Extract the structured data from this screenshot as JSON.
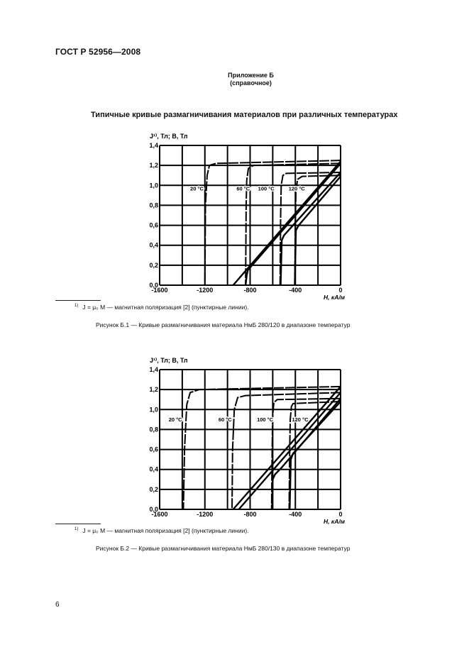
{
  "header": {
    "standard_code": "ГОСТ Р 52956—2008",
    "annex_title": "Приложение Б",
    "annex_subtitle": "(справочное)",
    "section_title": "Типичные кривые размагничивания материалов при различных температурах"
  },
  "figures": [
    {
      "footnote_marker": "1)",
      "footnote_text": "J = μ₀ M — магнитная поляризация [2] (пунктирные линии).",
      "caption": "Рисунок Б.1 — Кривые размагничивания материала НмБ 280/120 в диапазоне температур"
    },
    {
      "footnote_marker": "1)",
      "footnote_text": "J = μ₀ M — магнитная поляризация [2] (пунктирные линии).",
      "caption": "Рисунок Б.2 — Кривые размагничивания материала НмБ 280/130 в диапазоне температур"
    }
  ],
  "footer": {
    "page_number": "6"
  },
  "chart_data": [
    {
      "type": "line",
      "title": "Рисунок Б.1 — Кривые размагничивания материала НмБ 280/120 в диапазоне температур",
      "xlabel": "H, кА/м",
      "ylabel": "J¹⁾, Тл; B, Тл",
      "xlim": [
        -1600,
        0
      ],
      "ylim": [
        0.0,
        1.4
      ],
      "grid": true,
      "x_grid_step": 200,
      "y_grid_step": 0.2,
      "x_ticks": [
        "-1600",
        "-1200",
        "-800",
        "-400",
        "0"
      ],
      "y_ticks": [
        "0,0",
        "0,2",
        "0,4",
        "0,6",
        "0,8",
        "1,0",
        "1,2",
        "1,4"
      ],
      "annotations": [
        {
          "text": "20 °C",
          "x": -1330,
          "y": 0.95
        },
        {
          "text": "60 °C",
          "x": -920,
          "y": 0.95
        },
        {
          "text": "100 °C",
          "x": -730,
          "y": 0.95
        },
        {
          "text": "120 °C",
          "x": -460,
          "y": 0.95
        }
      ],
      "series": [
        {
          "name": "J 20 °C",
          "style": "dashed",
          "x": [
            0,
            -1100,
            -1160,
            -1180,
            -1195,
            -1200
          ],
          "y": [
            1.25,
            1.22,
            1.2,
            1.1,
            0.8,
            0.0
          ]
        },
        {
          "name": "J 60 °C",
          "style": "dashed",
          "x": [
            0,
            -770,
            -815,
            -830,
            -835,
            -840
          ],
          "y": [
            1.22,
            1.2,
            1.17,
            1.05,
            0.8,
            0.0
          ]
        },
        {
          "name": "J 100 °C",
          "style": "dashed",
          "x": [
            0,
            -480,
            -510,
            -525,
            -530,
            -535
          ],
          "y": [
            1.13,
            1.12,
            1.1,
            1.0,
            0.7,
            0.0
          ]
        },
        {
          "name": "J 120 °C",
          "style": "dashed",
          "x": [
            0,
            -340,
            -380,
            -395,
            -400,
            -405
          ],
          "y": [
            1.1,
            1.09,
            1.06,
            0.95,
            0.6,
            0.0
          ]
        },
        {
          "name": "B 20 °C",
          "style": "solid",
          "x": [
            0,
            -950
          ],
          "y": [
            1.24,
            0.0
          ]
        },
        {
          "name": "B 60 °C",
          "style": "solid",
          "x": [
            0,
            -820,
            -830,
            -840
          ],
          "y": [
            1.22,
            0.15,
            0.1,
            0.0
          ]
        },
        {
          "name": "B 100 °C",
          "style": "solid",
          "x": [
            0,
            -500,
            -520,
            -530
          ],
          "y": [
            1.13,
            0.5,
            0.45,
            0.0
          ]
        },
        {
          "name": "B 120 °C",
          "style": "solid",
          "x": [
            0,
            -370,
            -395,
            -405
          ],
          "y": [
            1.09,
            0.6,
            0.55,
            0.0
          ]
        }
      ]
    },
    {
      "type": "line",
      "title": "Рисунок Б.2 — Кривые размагничивания материала НмБ 280/130 в диапазоне температур",
      "xlabel": "H, кА/м",
      "ylabel": "J¹⁾, Тл; B, Тл",
      "xlim": [
        -1600,
        0
      ],
      "ylim": [
        0.0,
        1.4
      ],
      "grid": true,
      "x_grid_step": 200,
      "y_grid_step": 0.2,
      "x_ticks": [
        "-1600",
        "-1200",
        "-800",
        "-400",
        "0"
      ],
      "y_ticks": [
        "0,0",
        "0,2",
        "0,4",
        "0,6",
        "0,8",
        "1,0",
        "1,2",
        "1,4"
      ],
      "annotations": [
        {
          "text": "20 °C",
          "x": -1520,
          "y": 0.88
        },
        {
          "text": "60 °C",
          "x": -1080,
          "y": 0.88
        },
        {
          "text": "100 °C",
          "x": -740,
          "y": 0.88
        },
        {
          "text": "120 °C",
          "x": -430,
          "y": 0.88
        }
      ],
      "series": [
        {
          "name": "J 20 °C",
          "style": "dashed",
          "x": [
            0,
            -1250,
            -1330,
            -1360,
            -1380,
            -1390
          ],
          "y": [
            1.23,
            1.2,
            1.17,
            1.05,
            0.6,
            0.0
          ]
        },
        {
          "name": "J 60 °C",
          "style": "dashed",
          "x": [
            0,
            -840,
            -910,
            -940,
            -955,
            -960
          ],
          "y": [
            1.17,
            1.14,
            1.12,
            1.0,
            0.6,
            0.0
          ]
        },
        {
          "name": "J 100 °C",
          "style": "dashed",
          "x": [
            0,
            -560,
            -590,
            -600,
            -605,
            -610
          ],
          "y": [
            1.11,
            1.1,
            1.07,
            0.95,
            0.6,
            0.0
          ]
        },
        {
          "name": "J 120 °C",
          "style": "dashed",
          "x": [
            0,
            -420,
            -435,
            -445,
            -450,
            -455
          ],
          "y": [
            1.08,
            1.06,
            1.03,
            0.9,
            0.6,
            0.0
          ]
        },
        {
          "name": "B 20 °C",
          "style": "solid",
          "x": [
            0,
            -950
          ],
          "y": [
            1.23,
            0.0
          ]
        },
        {
          "name": "B 60 °C",
          "style": "solid",
          "x": [
            0,
            -900
          ],
          "y": [
            1.17,
            0.0
          ]
        },
        {
          "name": "B 100 °C",
          "style": "solid",
          "x": [
            0,
            -520,
            -580,
            -600,
            -605
          ],
          "y": [
            1.11,
            0.42,
            0.35,
            0.3,
            0.0
          ]
        },
        {
          "name": "B 120 °C",
          "style": "solid",
          "x": [
            0,
            -420,
            -440,
            -450
          ],
          "y": [
            1.08,
            0.56,
            0.5,
            0.0
          ]
        }
      ]
    }
  ]
}
